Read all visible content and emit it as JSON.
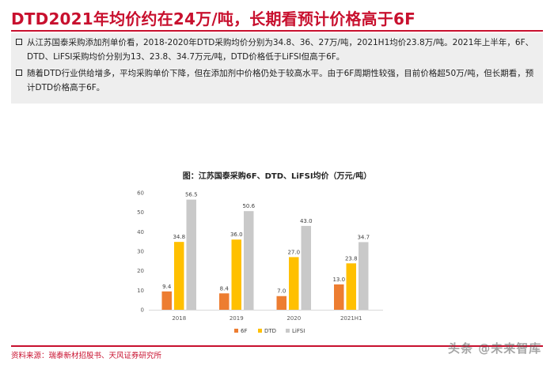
{
  "page": {
    "title": "DTD2021年均价约在24万/吨，长期看预计价格高于6F",
    "bullets": [
      "从江苏国泰采购添加剂单价看，2018-2020年DTD采购均价分别为34.8、36、27万/吨，2021H1均价23.8万/吨。2021年上半年，6F、DTD、LiFSI采购均价分别为13、23.8、34.7万元/吨，DTD价格低于LiFSI但高于6F。",
      "随着DTD行业供给增多，平均采购单价下降，但在添加剂中价格仍处于较高水平。由于6F周期性较强，目前价格超50万/吨，但长期看，预计DTD价格高于6F。"
    ],
    "source": "资料来源：瑞泰新材招股书、天风证券研究所",
    "watermark": "头条 @未来智库"
  },
  "chart_data": {
    "type": "bar",
    "title": "图：江苏国泰采购6F、DTD、LiFSI均价（万元/吨）",
    "categories": [
      "2018",
      "2019",
      "2020",
      "2021H1"
    ],
    "series": [
      {
        "name": "6F",
        "color": "#ed7d31",
        "values": [
          9.4,
          8.4,
          7.0,
          13.0
        ],
        "labels": [
          "9.4",
          "8.4",
          "7.0",
          "13.0"
        ]
      },
      {
        "name": "DTD",
        "color": "#ffc000",
        "values": [
          34.8,
          36.0,
          27.0,
          23.8
        ],
        "labels": [
          "34.8",
          "36.0",
          "27.0",
          "23.8"
        ]
      },
      {
        "name": "LiFSI",
        "color": "#c9c9c9",
        "values": [
          56.5,
          50.6,
          43.0,
          34.7
        ],
        "labels": [
          "56.5",
          "50.6",
          "43.0",
          "34.7"
        ]
      }
    ],
    "ylim": [
      0,
      60
    ],
    "yticks": [
      "0",
      "10",
      "20",
      "30",
      "40",
      "50",
      "60"
    ],
    "xlabel": "",
    "ylabel": "",
    "legend": "bottom",
    "grid": false
  }
}
